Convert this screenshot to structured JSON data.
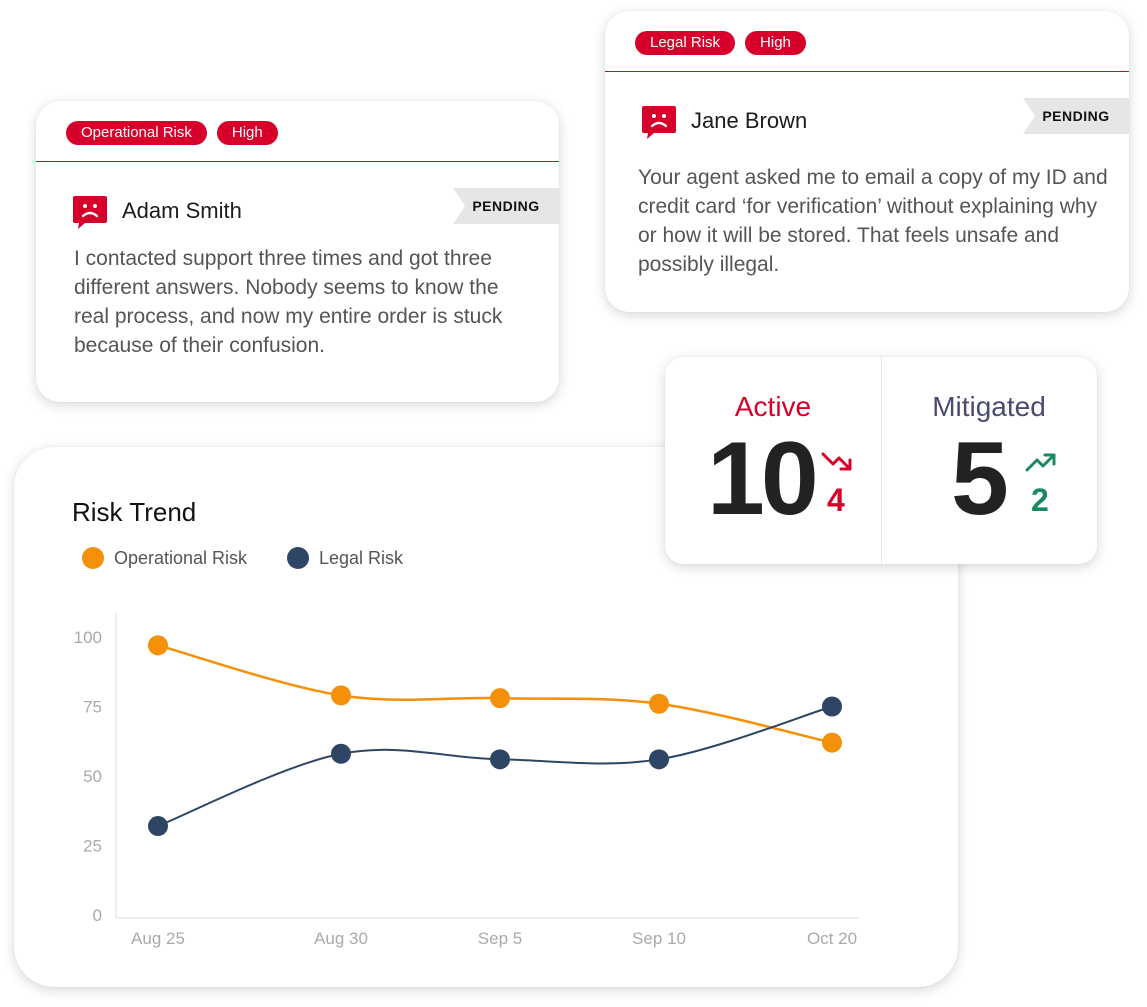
{
  "card_left": {
    "tags": [
      "Operational Risk",
      "High"
    ],
    "name": "Adam Smith",
    "status": "PENDING",
    "text": "I contacted support three times and got three different answers. Nobody seems to know the real process, and now my entire order is stuck because of their confusion."
  },
  "card_right": {
    "tags": [
      "Legal Risk",
      "High"
    ],
    "name": "Jane Brown",
    "status": "PENDING",
    "text": "Your agent asked me to email a copy of my ID and credit card ‘for verification’ without explaining why or how it will be stored. That feels unsafe and possibly illegal."
  },
  "stats": {
    "active": {
      "label": "Active",
      "value": "10",
      "delta": "4",
      "trend": "down"
    },
    "mitigated": {
      "label": "Mitigated",
      "value": "5",
      "delta": "2",
      "trend": "up"
    }
  },
  "colors": {
    "accent_red": "#d6002a",
    "mitigated_label": "#4a4a72",
    "up_green": "#1a8a5e",
    "operational": "#f5900a",
    "legal": "#2f4565"
  },
  "icons": {
    "sad": "sad-face-chat-icon",
    "trend_down": "trend-down-icon",
    "trend_up": "trend-up-icon"
  },
  "chart_data": {
    "type": "line",
    "title": "Risk Trend",
    "categories": [
      "Aug 25",
      "Aug 30",
      "Sep 5",
      "Sep 10",
      "Oct 20"
    ],
    "series": [
      {
        "name": "Operational Risk",
        "values": [
          97,
          79,
          78,
          76,
          62
        ]
      },
      {
        "name": "Legal Risk",
        "values": [
          32,
          58,
          56,
          56,
          75
        ]
      }
    ],
    "ylim": [
      0,
      100
    ],
    "yticks": [
      0,
      25,
      50,
      75,
      100
    ],
    "legend": "top-left",
    "grid": false
  }
}
